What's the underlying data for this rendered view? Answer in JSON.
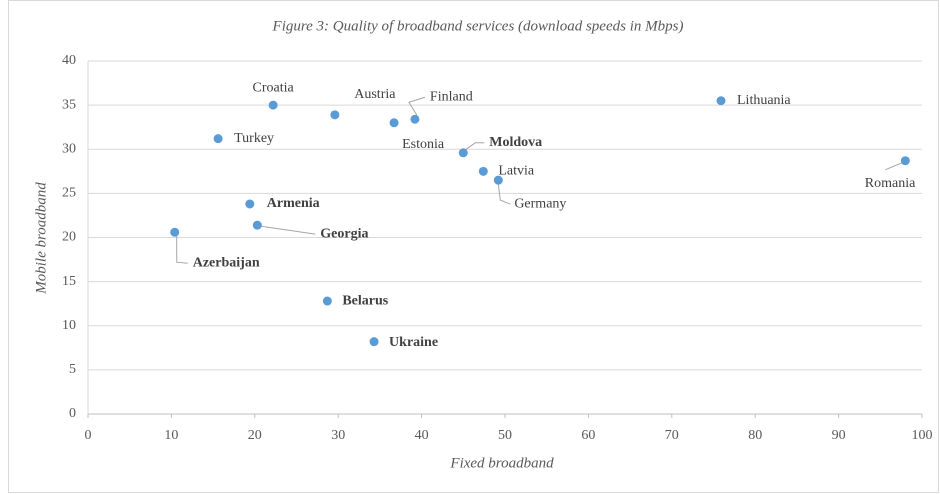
{
  "chart_data": {
    "type": "scatter",
    "title": "Figure 3: Quality of broadband services (download speeds in Mbps)",
    "xlabel": "Fixed broadband",
    "ylabel": "Mobile broadband",
    "color": "#5b9bd5",
    "labels": [
      "Croatia",
      "Austria",
      "Finland",
      "Estonia",
      "Lithuania",
      "Turkey",
      "Moldova",
      "Latvia",
      "Germany",
      "Romania",
      "Armenia",
      "Georgia",
      "Azerbaijan",
      "Belarus",
      "Ukraine"
    ],
    "x": [
      22.2,
      29.6,
      39.2,
      36.7,
      75.9,
      15.6,
      45.0,
      47.4,
      49.2,
      98.0,
      19.4,
      20.3,
      10.4,
      28.7,
      34.3
    ],
    "y": [
      35.0,
      33.9,
      33.4,
      33.0,
      35.5,
      31.2,
      29.6,
      27.5,
      26.5,
      28.7,
      23.8,
      21.4,
      20.6,
      12.8,
      8.2
    ],
    "bold": [
      false,
      false,
      false,
      false,
      false,
      false,
      true,
      false,
      false,
      false,
      true,
      true,
      true,
      true,
      true
    ],
    "xlim": [
      0,
      100
    ],
    "xticks": [
      0,
      10,
      20,
      30,
      40,
      50,
      60,
      70,
      80,
      90,
      100
    ],
    "ylim": [
      0,
      40
    ],
    "yticks": [
      0,
      5,
      10,
      15,
      20,
      25,
      30,
      35,
      40
    ],
    "grid": true
  }
}
